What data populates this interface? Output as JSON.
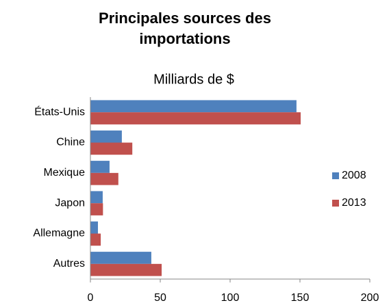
{
  "chart_data": {
    "type": "hbar",
    "title": "Principales sources des importations",
    "subtitle": "Milliards de $",
    "categories": [
      "États-Unis",
      "Chine",
      "Mexique",
      "Japon",
      "Allemagne",
      "Autres"
    ],
    "series": [
      {
        "name": "2008",
        "color": "#4f81bd",
        "values": [
          147.5,
          22.5,
          13.7,
          8.8,
          5.4,
          43.6
        ]
      },
      {
        "name": "2013",
        "color": "#c0504d",
        "values": [
          150.5,
          30,
          20,
          9,
          7.4,
          51
        ]
      }
    ],
    "xlim": [
      0,
      200
    ],
    "xticks": [
      0,
      50,
      100,
      150,
      200
    ],
    "legend": "right"
  }
}
